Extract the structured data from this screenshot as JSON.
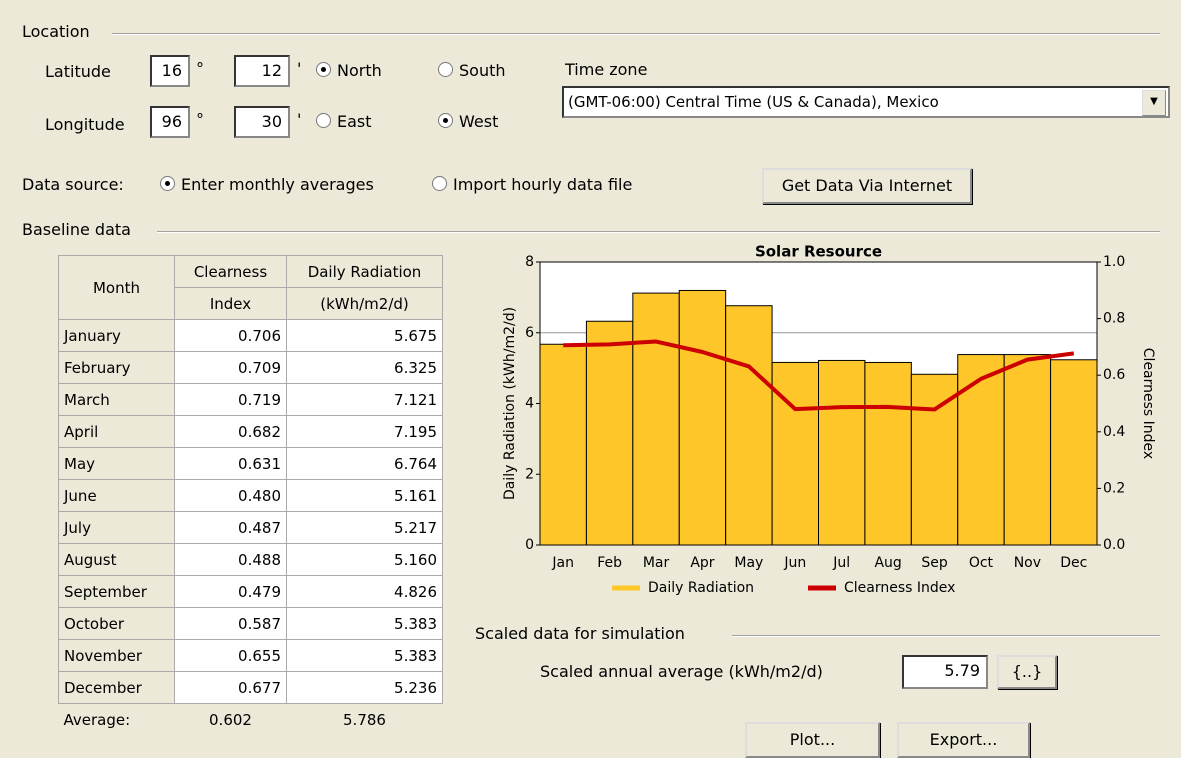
{
  "location": {
    "title": "Location",
    "degree_symbol": "°",
    "minute_symbol": "'",
    "latitude": {
      "label": "Latitude",
      "degrees": "16",
      "minutes": "12",
      "options": [
        {
          "label": "North",
          "checked": true
        },
        {
          "label": "South",
          "checked": false
        }
      ]
    },
    "longitude": {
      "label": "Longitude",
      "degrees": "96",
      "minutes": "30",
      "options": [
        {
          "label": "East",
          "checked": false
        },
        {
          "label": "West",
          "checked": true
        }
      ]
    }
  },
  "time_zone": {
    "label": "Time zone",
    "value": "(GMT-06:00) Central Time (US & Canada), Mexico"
  },
  "data_source": {
    "label": "Data source:",
    "options": [
      {
        "label": "Enter monthly averages",
        "checked": true
      },
      {
        "label": "Import hourly data file",
        "checked": false
      }
    ],
    "button": "Get Data Via Internet"
  },
  "baseline": {
    "title": "Baseline data",
    "table": {
      "header": [
        "Month",
        "Clearness",
        "Daily Radiation"
      ],
      "subheader": [
        "Index",
        "(kWh/m2/d)"
      ],
      "rows": [
        [
          "January",
          "0.706",
          "5.675"
        ],
        [
          "February",
          "0.709",
          "6.325"
        ],
        [
          "March",
          "0.719",
          "7.121"
        ],
        [
          "April",
          "0.682",
          "7.195"
        ],
        [
          "May",
          "0.631",
          "6.764"
        ],
        [
          "June",
          "0.480",
          "5.161"
        ],
        [
          "July",
          "0.487",
          "5.217"
        ],
        [
          "August",
          "0.488",
          "5.160"
        ],
        [
          "September",
          "0.479",
          "4.826"
        ],
        [
          "October",
          "0.587",
          "5.383"
        ],
        [
          "November",
          "0.655",
          "5.383"
        ],
        [
          "December",
          "0.677",
          "5.236"
        ]
      ],
      "average": [
        "Average:",
        "0.602",
        "5.786"
      ]
    }
  },
  "chart_data": {
    "type": "bar_line",
    "title": "Solar Resource",
    "y_label": "Daily Radiation (kWh/m2/d)",
    "y2_label": "Clearness Index",
    "categories": [
      "Jan",
      "Feb",
      "Mar",
      "Apr",
      "May",
      "Jun",
      "Jul",
      "Aug",
      "Sep",
      "Oct",
      "Nov",
      "Dec"
    ],
    "series": [
      {
        "name": "Daily Radiation",
        "color": "#ffc629",
        "values": [
          5.675,
          6.325,
          7.121,
          7.195,
          6.764,
          5.161,
          5.217,
          5.16,
          4.826,
          5.383,
          5.383,
          5.236
        ]
      },
      {
        "name": "Clearness Index",
        "color": "#cc0000",
        "axis": "y2",
        "values": [
          0.706,
          0.709,
          0.719,
          0.682,
          0.631,
          0.48,
          0.487,
          0.488,
          0.479,
          0.587,
          0.655,
          0.677
        ]
      }
    ],
    "ylim": [
      0,
      8
    ],
    "yticks": [
      0,
      2,
      4,
      6,
      8
    ],
    "y2lim": [
      0,
      1
    ],
    "y2ticks": [
      {
        "value": 0,
        "label": "0.0"
      },
      0.2,
      0.4,
      0.6,
      0.8,
      {
        "value": 1,
        "label": "1.0"
      }
    ],
    "grid": true
  },
  "scaled": {
    "title": "Scaled data for simulation",
    "label": "Scaled annual average (kWh/m2/d)",
    "value": "5.79",
    "button": "{..}"
  },
  "buttons": [
    "Plot...",
    "Export..."
  ]
}
